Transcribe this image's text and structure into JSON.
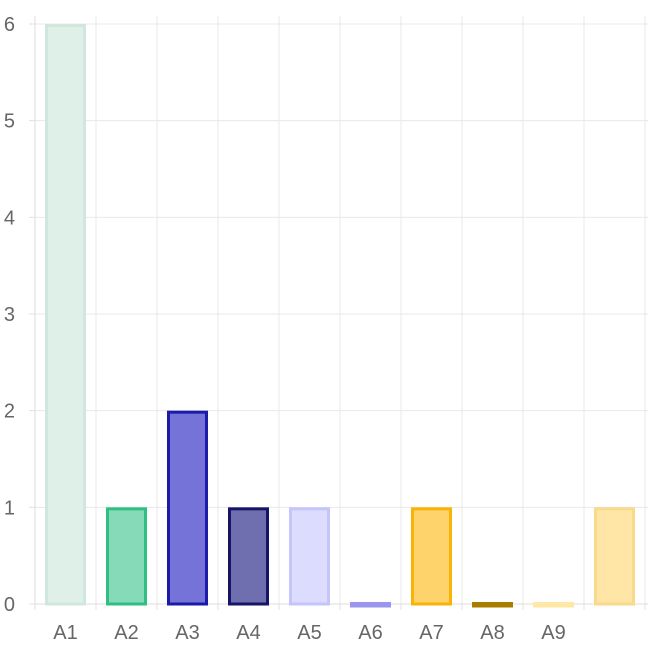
{
  "chart_data": {
    "type": "bar",
    "title": "",
    "xlabel": "",
    "ylabel": "",
    "categories": [
      "A1",
      "A2",
      "A3",
      "A4",
      "A5",
      "A6",
      "A7",
      "A8",
      "A9",
      ""
    ],
    "values": [
      6,
      1,
      2,
      1,
      1,
      0,
      1,
      0,
      0,
      1
    ],
    "ylim": [
      0,
      6
    ],
    "yticks": [
      "0",
      "1",
      "2",
      "3",
      "4",
      "5",
      "6"
    ],
    "grid": true,
    "legend": "none",
    "bar_colors": [
      {
        "fill": "#dff0e8",
        "stroke": "#cfe7dc"
      },
      {
        "fill": "#86dab8",
        "stroke": "#2fbf82"
      },
      {
        "fill": "#7572d8",
        "stroke": "#1c1aa9"
      },
      {
        "fill": "#6f6eae",
        "stroke": "#151466"
      },
      {
        "fill": "#dcdcfe",
        "stroke": "#c5c5fb"
      },
      {
        "fill": "#a09cf4",
        "stroke": "#9a96f0"
      },
      {
        "fill": "#ffd36b",
        "stroke": "#f9b304"
      },
      {
        "fill": "#b58500",
        "stroke": "#a97c00"
      },
      {
        "fill": "#ffeeb9",
        "stroke": "#ffe7a6"
      },
      {
        "fill": "#ffe6a6",
        "stroke": "#f9d98a"
      }
    ]
  }
}
